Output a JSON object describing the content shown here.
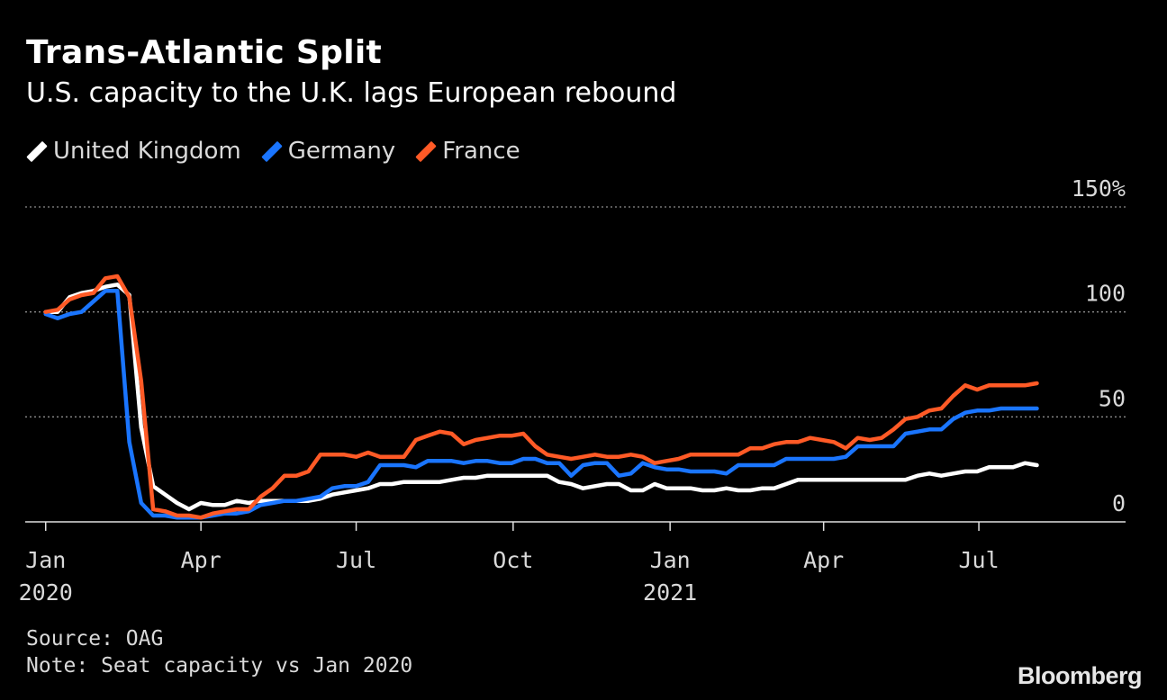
{
  "chart_data": {
    "type": "line",
    "title": "Trans-Atlantic Split",
    "subtitle": "U.S. capacity to the U.K. lags European rebound",
    "unit": "%",
    "ylim": [
      0,
      150
    ],
    "y_ticks": [
      {
        "value": 0,
        "label": "0"
      },
      {
        "value": 50,
        "label": "50"
      },
      {
        "value": 100,
        "label": "100"
      },
      {
        "value": 150,
        "label": "150%"
      }
    ],
    "x_ticks": [
      {
        "date": "2020-01-01",
        "label": "Jan",
        "year": "2020"
      },
      {
        "date": "2020-04-01",
        "label": "Apr",
        "year": ""
      },
      {
        "date": "2020-07-01",
        "label": "Jul",
        "year": ""
      },
      {
        "date": "2020-10-01",
        "label": "Oct",
        "year": ""
      },
      {
        "date": "2021-01-01",
        "label": "Jan",
        "year": "2021"
      },
      {
        "date": "2021-04-01",
        "label": "Apr",
        "year": ""
      },
      {
        "date": "2021-07-01",
        "label": "Jul",
        "year": ""
      }
    ],
    "xlim": [
      "2019-12-20",
      "2021-09-25"
    ],
    "grid": true,
    "legend_position": "top-left",
    "x": [
      "2020-01-01",
      "2020-01-08",
      "2020-01-15",
      "2020-01-22",
      "2020-01-29",
      "2020-02-05",
      "2020-02-12",
      "2020-02-19",
      "2020-02-26",
      "2020-03-04",
      "2020-03-11",
      "2020-03-18",
      "2020-03-25",
      "2020-04-01",
      "2020-04-08",
      "2020-04-15",
      "2020-04-22",
      "2020-04-29",
      "2020-05-06",
      "2020-05-13",
      "2020-05-20",
      "2020-05-27",
      "2020-06-03",
      "2020-06-10",
      "2020-06-17",
      "2020-06-24",
      "2020-07-01",
      "2020-07-08",
      "2020-07-15",
      "2020-07-22",
      "2020-07-29",
      "2020-08-05",
      "2020-08-12",
      "2020-08-19",
      "2020-08-26",
      "2020-09-02",
      "2020-09-09",
      "2020-09-16",
      "2020-09-23",
      "2020-09-30",
      "2020-10-07",
      "2020-10-14",
      "2020-10-21",
      "2020-10-28",
      "2020-11-04",
      "2020-11-11",
      "2020-11-18",
      "2020-11-25",
      "2020-12-02",
      "2020-12-09",
      "2020-12-16",
      "2020-12-23",
      "2020-12-30",
      "2021-01-06",
      "2021-01-13",
      "2021-01-20",
      "2021-01-27",
      "2021-02-03",
      "2021-02-10",
      "2021-02-17",
      "2021-02-24",
      "2021-03-03",
      "2021-03-10",
      "2021-03-17",
      "2021-03-24",
      "2021-03-31",
      "2021-04-07",
      "2021-04-14",
      "2021-04-21",
      "2021-04-28",
      "2021-05-05",
      "2021-05-12",
      "2021-05-19",
      "2021-05-26",
      "2021-06-02",
      "2021-06-09",
      "2021-06-16",
      "2021-06-23",
      "2021-06-30",
      "2021-07-07",
      "2021-07-14",
      "2021-07-21",
      "2021-07-28",
      "2021-08-04"
    ],
    "series": [
      {
        "name": "United Kingdom",
        "color": "#ffffff",
        "values": [
          100,
          100,
          107,
          109,
          110,
          112,
          113,
          108,
          45,
          17,
          13,
          9,
          6,
          9,
          8,
          8,
          10,
          9,
          10,
          10,
          10,
          10,
          10,
          11,
          13,
          14,
          15,
          16,
          18,
          18,
          19,
          19,
          19,
          19,
          20,
          21,
          21,
          22,
          22,
          22,
          22,
          22,
          22,
          19,
          18,
          16,
          17,
          18,
          18,
          15,
          15,
          18,
          16,
          16,
          16,
          15,
          15,
          16,
          15,
          15,
          16,
          16,
          18,
          20,
          20,
          20,
          20,
          20,
          20,
          20,
          20,
          20,
          20,
          22,
          23,
          22,
          23,
          24,
          24,
          26,
          26,
          26,
          28,
          27
        ]
      },
      {
        "name": "Germany",
        "color": "#1a75ff",
        "values": [
          99,
          97,
          99,
          100,
          105,
          110,
          110,
          38,
          9,
          3,
          3,
          2,
          2,
          2,
          3,
          4,
          4,
          5,
          8,
          9,
          10,
          10,
          11,
          12,
          16,
          17,
          17,
          19,
          27,
          27,
          27,
          26,
          29,
          29,
          29,
          28,
          29,
          29,
          28,
          28,
          30,
          30,
          28,
          28,
          22,
          27,
          28,
          28,
          22,
          23,
          28,
          26,
          25,
          25,
          24,
          24,
          24,
          23,
          27,
          27,
          27,
          27,
          30,
          30,
          30,
          30,
          30,
          31,
          36,
          36,
          36,
          36,
          42,
          43,
          44,
          44,
          49,
          52,
          53,
          53,
          54,
          54,
          54,
          54
        ]
      },
      {
        "name": "France",
        "color": "#ff5a26",
        "values": [
          100,
          101,
          106,
          108,
          109,
          116,
          117,
          107,
          67,
          6,
          5,
          3,
          3,
          2,
          4,
          5,
          6,
          6,
          12,
          16,
          22,
          22,
          24,
          32,
          32,
          32,
          31,
          33,
          31,
          31,
          31,
          39,
          41,
          43,
          42,
          37,
          39,
          40,
          41,
          41,
          42,
          36,
          32,
          31,
          30,
          31,
          32,
          31,
          31,
          32,
          31,
          28,
          29,
          30,
          32,
          32,
          32,
          32,
          32,
          35,
          35,
          37,
          38,
          38,
          40,
          39,
          38,
          35,
          40,
          39,
          40,
          44,
          49,
          50,
          53,
          54,
          60,
          65,
          63,
          65,
          65,
          65,
          65,
          66
        ]
      }
    ]
  },
  "source": "Source: OAG",
  "note": "Note: Seat capacity vs Jan 2020",
  "brand": "Bloomberg"
}
